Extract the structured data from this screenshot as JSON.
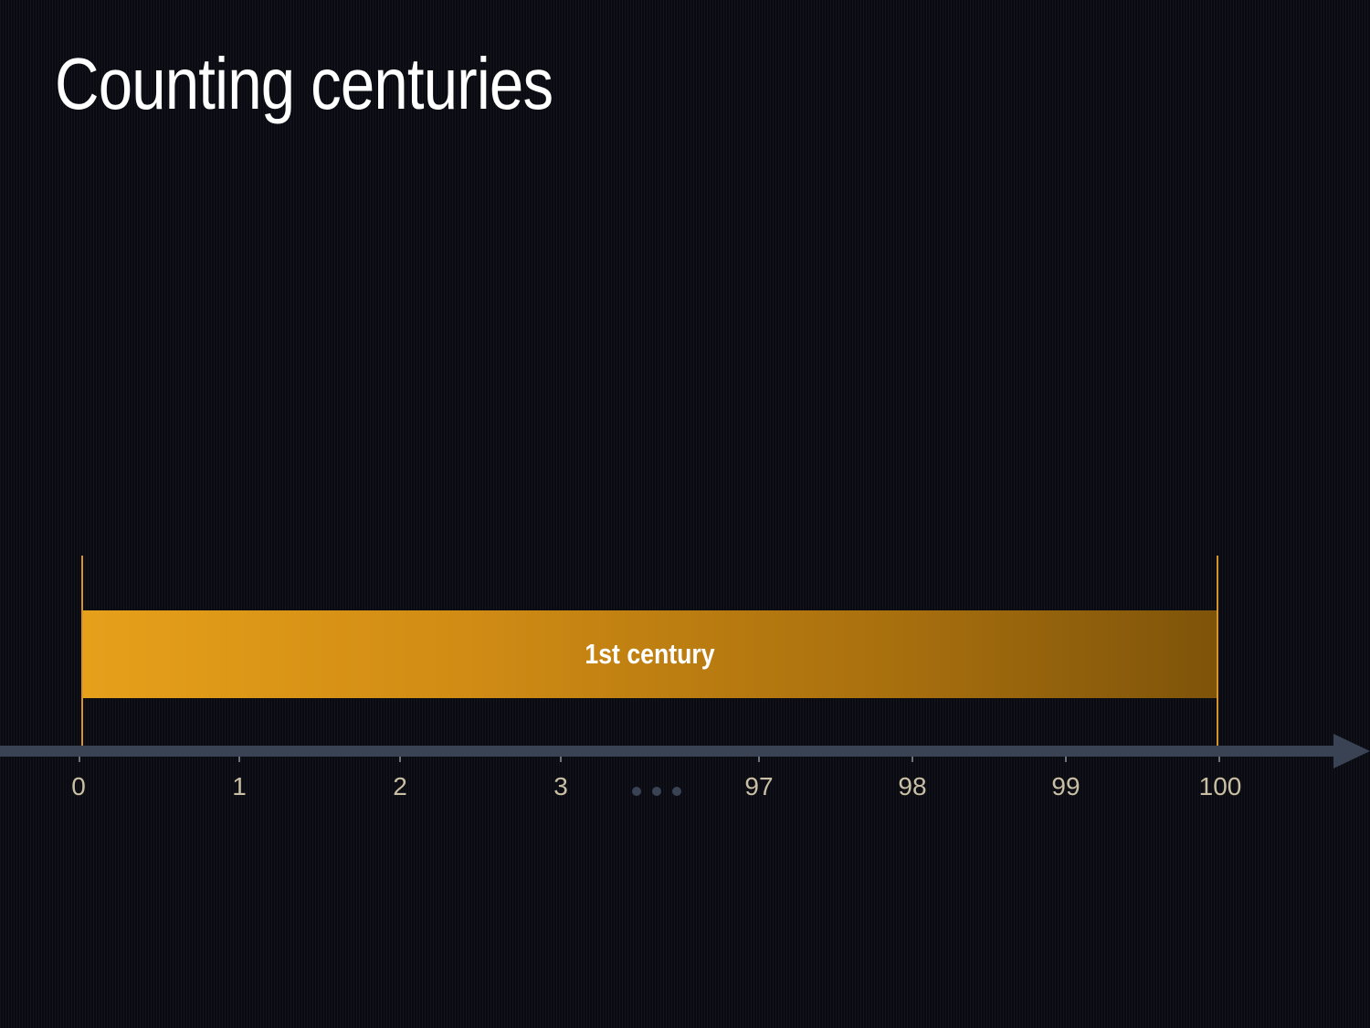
{
  "title": "Counting centuries",
  "timeline": {
    "span": {
      "label": "1st century",
      "start": 0,
      "end": 100
    },
    "ticks": [
      "0",
      "1",
      "2",
      "3",
      "97",
      "98",
      "99",
      "100"
    ],
    "ellipsis_icon": "ellipsis-icon"
  },
  "colors": {
    "background": "#0a0b12",
    "bar_start": "#e6a01a",
    "bar_end": "#7e540a",
    "boundary": "#d8942a",
    "axis": "#3a4354",
    "tick_label": "#c9bfa4",
    "title": "#ffffff"
  }
}
